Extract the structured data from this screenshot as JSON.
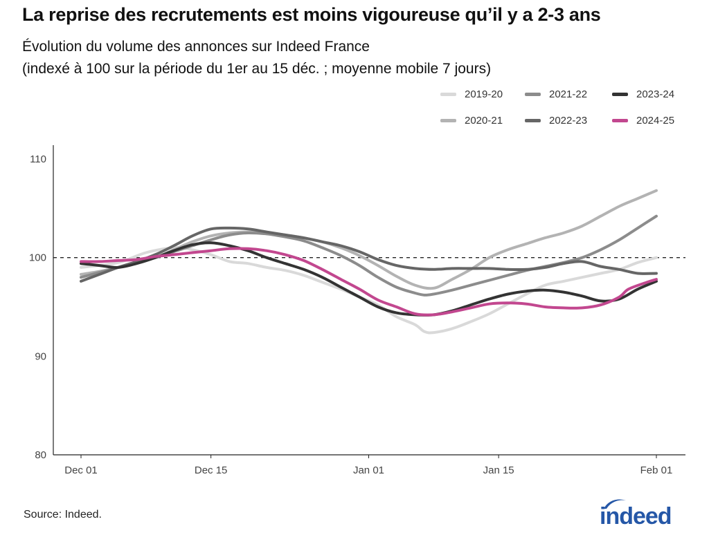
{
  "title": "La reprise des recrutements est moins vigoureuse qu’il y a 2-3 ans",
  "subtitle_line1": "Évolution du volume des annonces sur Indeed France",
  "subtitle_line2": "(indexé à 100 sur la période du 1er au 15 déc. ; moyenne mobile 7 jours)",
  "source": "Source: Indeed.",
  "logo_text": "indeed",
  "chart_data": {
    "type": "line",
    "xlabel": "",
    "ylabel": "",
    "xlim": [
      0,
      62
    ],
    "ylim": [
      80,
      111
    ],
    "x_ticks": [
      {
        "label": "Dec 01",
        "x": 0
      },
      {
        "label": "Dec 15",
        "x": 14
      },
      {
        "label": "Jan 01",
        "x": 31
      },
      {
        "label": "Jan 15",
        "x": 45
      },
      {
        "label": "Feb 01",
        "x": 62
      }
    ],
    "y_ticks": [
      80,
      90,
      100,
      110
    ],
    "reference_line": {
      "y": 100,
      "style": "dashed"
    },
    "grid": false,
    "legend_position": "top-right",
    "series": [
      {
        "name": "2019-20",
        "color": "#d9d9d9",
        "points": [
          [
            0,
            99
          ],
          [
            4,
            99.5
          ],
          [
            7,
            100.5
          ],
          [
            10,
            101
          ],
          [
            12,
            100.8
          ],
          [
            14,
            100.3
          ],
          [
            16,
            99.6
          ],
          [
            18,
            99.4
          ],
          [
            20,
            99
          ],
          [
            22,
            98.7
          ],
          [
            24,
            98.2
          ],
          [
            26,
            97.5
          ],
          [
            28,
            96.8
          ],
          [
            30,
            96
          ],
          [
            32,
            95.2
          ],
          [
            34,
            94
          ],
          [
            36,
            93.2
          ],
          [
            37,
            92.5
          ],
          [
            38,
            92.4
          ],
          [
            40,
            92.8
          ],
          [
            42,
            93.5
          ],
          [
            44,
            94.3
          ],
          [
            46,
            95.3
          ],
          [
            48,
            96.3
          ],
          [
            50,
            97.2
          ],
          [
            52,
            97.6
          ],
          [
            54,
            98
          ],
          [
            56,
            98.4
          ],
          [
            58,
            98.8
          ],
          [
            60,
            99.5
          ],
          [
            62,
            100
          ]
        ]
      },
      {
        "name": "2020-21",
        "color": "#b3b3b3",
        "points": [
          [
            0,
            98.3
          ],
          [
            2,
            98.6
          ],
          [
            4,
            99
          ],
          [
            6,
            99.5
          ],
          [
            8,
            100
          ],
          [
            10,
            100.8
          ],
          [
            12,
            101.6
          ],
          [
            14,
            102.2
          ],
          [
            16,
            102.5
          ],
          [
            18,
            102.6
          ],
          [
            20,
            102.5
          ],
          [
            22,
            102.3
          ],
          [
            24,
            102
          ],
          [
            26,
            101.6
          ],
          [
            28,
            101
          ],
          [
            30,
            100.2
          ],
          [
            32,
            99.2
          ],
          [
            34,
            98.1
          ],
          [
            36,
            97.2
          ],
          [
            38,
            96.9
          ],
          [
            40,
            97.8
          ],
          [
            42,
            98.8
          ],
          [
            44,
            100
          ],
          [
            46,
            100.8
          ],
          [
            48,
            101.4
          ],
          [
            50,
            102
          ],
          [
            52,
            102.5
          ],
          [
            54,
            103.2
          ],
          [
            56,
            104.2
          ],
          [
            58,
            105.2
          ],
          [
            60,
            106
          ],
          [
            62,
            106.8
          ]
        ]
      },
      {
        "name": "2021-22",
        "color": "#8c8c8c",
        "points": [
          [
            0,
            98
          ],
          [
            2,
            98.5
          ],
          [
            4,
            99
          ],
          [
            6,
            99.5
          ],
          [
            8,
            100
          ],
          [
            10,
            100.6
          ],
          [
            12,
            101.2
          ],
          [
            14,
            101.8
          ],
          [
            16,
            102.3
          ],
          [
            18,
            102.5
          ],
          [
            20,
            102.4
          ],
          [
            22,
            102.1
          ],
          [
            24,
            101.7
          ],
          [
            26,
            101
          ],
          [
            28,
            100.2
          ],
          [
            30,
            99.2
          ],
          [
            32,
            98
          ],
          [
            34,
            97
          ],
          [
            36,
            96.4
          ],
          [
            37,
            96.2
          ],
          [
            38,
            96.3
          ],
          [
            40,
            96.7
          ],
          [
            42,
            97.2
          ],
          [
            44,
            97.7
          ],
          [
            46,
            98.2
          ],
          [
            48,
            98.7
          ],
          [
            50,
            99.1
          ],
          [
            52,
            99.5
          ],
          [
            54,
            100
          ],
          [
            56,
            100.8
          ],
          [
            58,
            101.8
          ],
          [
            60,
            103
          ],
          [
            62,
            104.2
          ]
        ]
      },
      {
        "name": "2022-23",
        "color": "#666666",
        "points": [
          [
            0,
            97.6
          ],
          [
            2,
            98.3
          ],
          [
            4,
            99
          ],
          [
            6,
            99.6
          ],
          [
            8,
            100.3
          ],
          [
            10,
            101.2
          ],
          [
            12,
            102.2
          ],
          [
            14,
            102.9
          ],
          [
            16,
            103
          ],
          [
            18,
            102.9
          ],
          [
            20,
            102.6
          ],
          [
            22,
            102.3
          ],
          [
            24,
            102
          ],
          [
            26,
            101.6
          ],
          [
            28,
            101.2
          ],
          [
            30,
            100.6
          ],
          [
            32,
            99.8
          ],
          [
            34,
            99.2
          ],
          [
            36,
            98.9
          ],
          [
            38,
            98.8
          ],
          [
            40,
            98.9
          ],
          [
            42,
            98.9
          ],
          [
            44,
            98.9
          ],
          [
            46,
            98.8
          ],
          [
            48,
            98.8
          ],
          [
            50,
            99
          ],
          [
            52,
            99.4
          ],
          [
            54,
            99.6
          ],
          [
            56,
            99.1
          ],
          [
            58,
            98.8
          ],
          [
            60,
            98.4
          ],
          [
            62,
            98.4
          ]
        ]
      },
      {
        "name": "2023-24",
        "color": "#333333",
        "points": [
          [
            0,
            99.4
          ],
          [
            2,
            99.2
          ],
          [
            4,
            99
          ],
          [
            6,
            99.4
          ],
          [
            8,
            100
          ],
          [
            10,
            100.7
          ],
          [
            12,
            101.3
          ],
          [
            14,
            101.5
          ],
          [
            16,
            101.2
          ],
          [
            18,
            100.7
          ],
          [
            20,
            100
          ],
          [
            22,
            99.4
          ],
          [
            24,
            98.8
          ],
          [
            26,
            98
          ],
          [
            28,
            97
          ],
          [
            30,
            96
          ],
          [
            32,
            95
          ],
          [
            34,
            94.4
          ],
          [
            36,
            94.2
          ],
          [
            38,
            94.2
          ],
          [
            40,
            94.6
          ],
          [
            42,
            95.2
          ],
          [
            44,
            95.8
          ],
          [
            46,
            96.3
          ],
          [
            48,
            96.6
          ],
          [
            50,
            96.7
          ],
          [
            52,
            96.5
          ],
          [
            54,
            96.1
          ],
          [
            56,
            95.6
          ],
          [
            58,
            95.8
          ],
          [
            60,
            96.8
          ],
          [
            62,
            97.6
          ]
        ]
      },
      {
        "name": "2024-25",
        "color": "#c2478f",
        "points": [
          [
            0,
            99.6
          ],
          [
            2,
            99.6
          ],
          [
            4,
            99.7
          ],
          [
            6,
            99.8
          ],
          [
            8,
            100.1
          ],
          [
            10,
            100.3
          ],
          [
            12,
            100.5
          ],
          [
            14,
            100.7
          ],
          [
            16,
            100.9
          ],
          [
            18,
            100.9
          ],
          [
            20,
            100.7
          ],
          [
            22,
            100.3
          ],
          [
            24,
            99.7
          ],
          [
            26,
            98.8
          ],
          [
            28,
            97.8
          ],
          [
            30,
            96.8
          ],
          [
            32,
            95.7
          ],
          [
            34,
            95
          ],
          [
            36,
            94.3
          ],
          [
            38,
            94.2
          ],
          [
            40,
            94.5
          ],
          [
            42,
            94.9
          ],
          [
            44,
            95.3
          ],
          [
            46,
            95.4
          ],
          [
            48,
            95.3
          ],
          [
            50,
            95
          ],
          [
            52,
            94.9
          ],
          [
            54,
            94.9
          ],
          [
            56,
            95.2
          ],
          [
            58,
            96
          ],
          [
            59,
            96.8
          ],
          [
            61,
            97.5
          ],
          [
            62,
            97.8
          ]
        ]
      }
    ]
  }
}
